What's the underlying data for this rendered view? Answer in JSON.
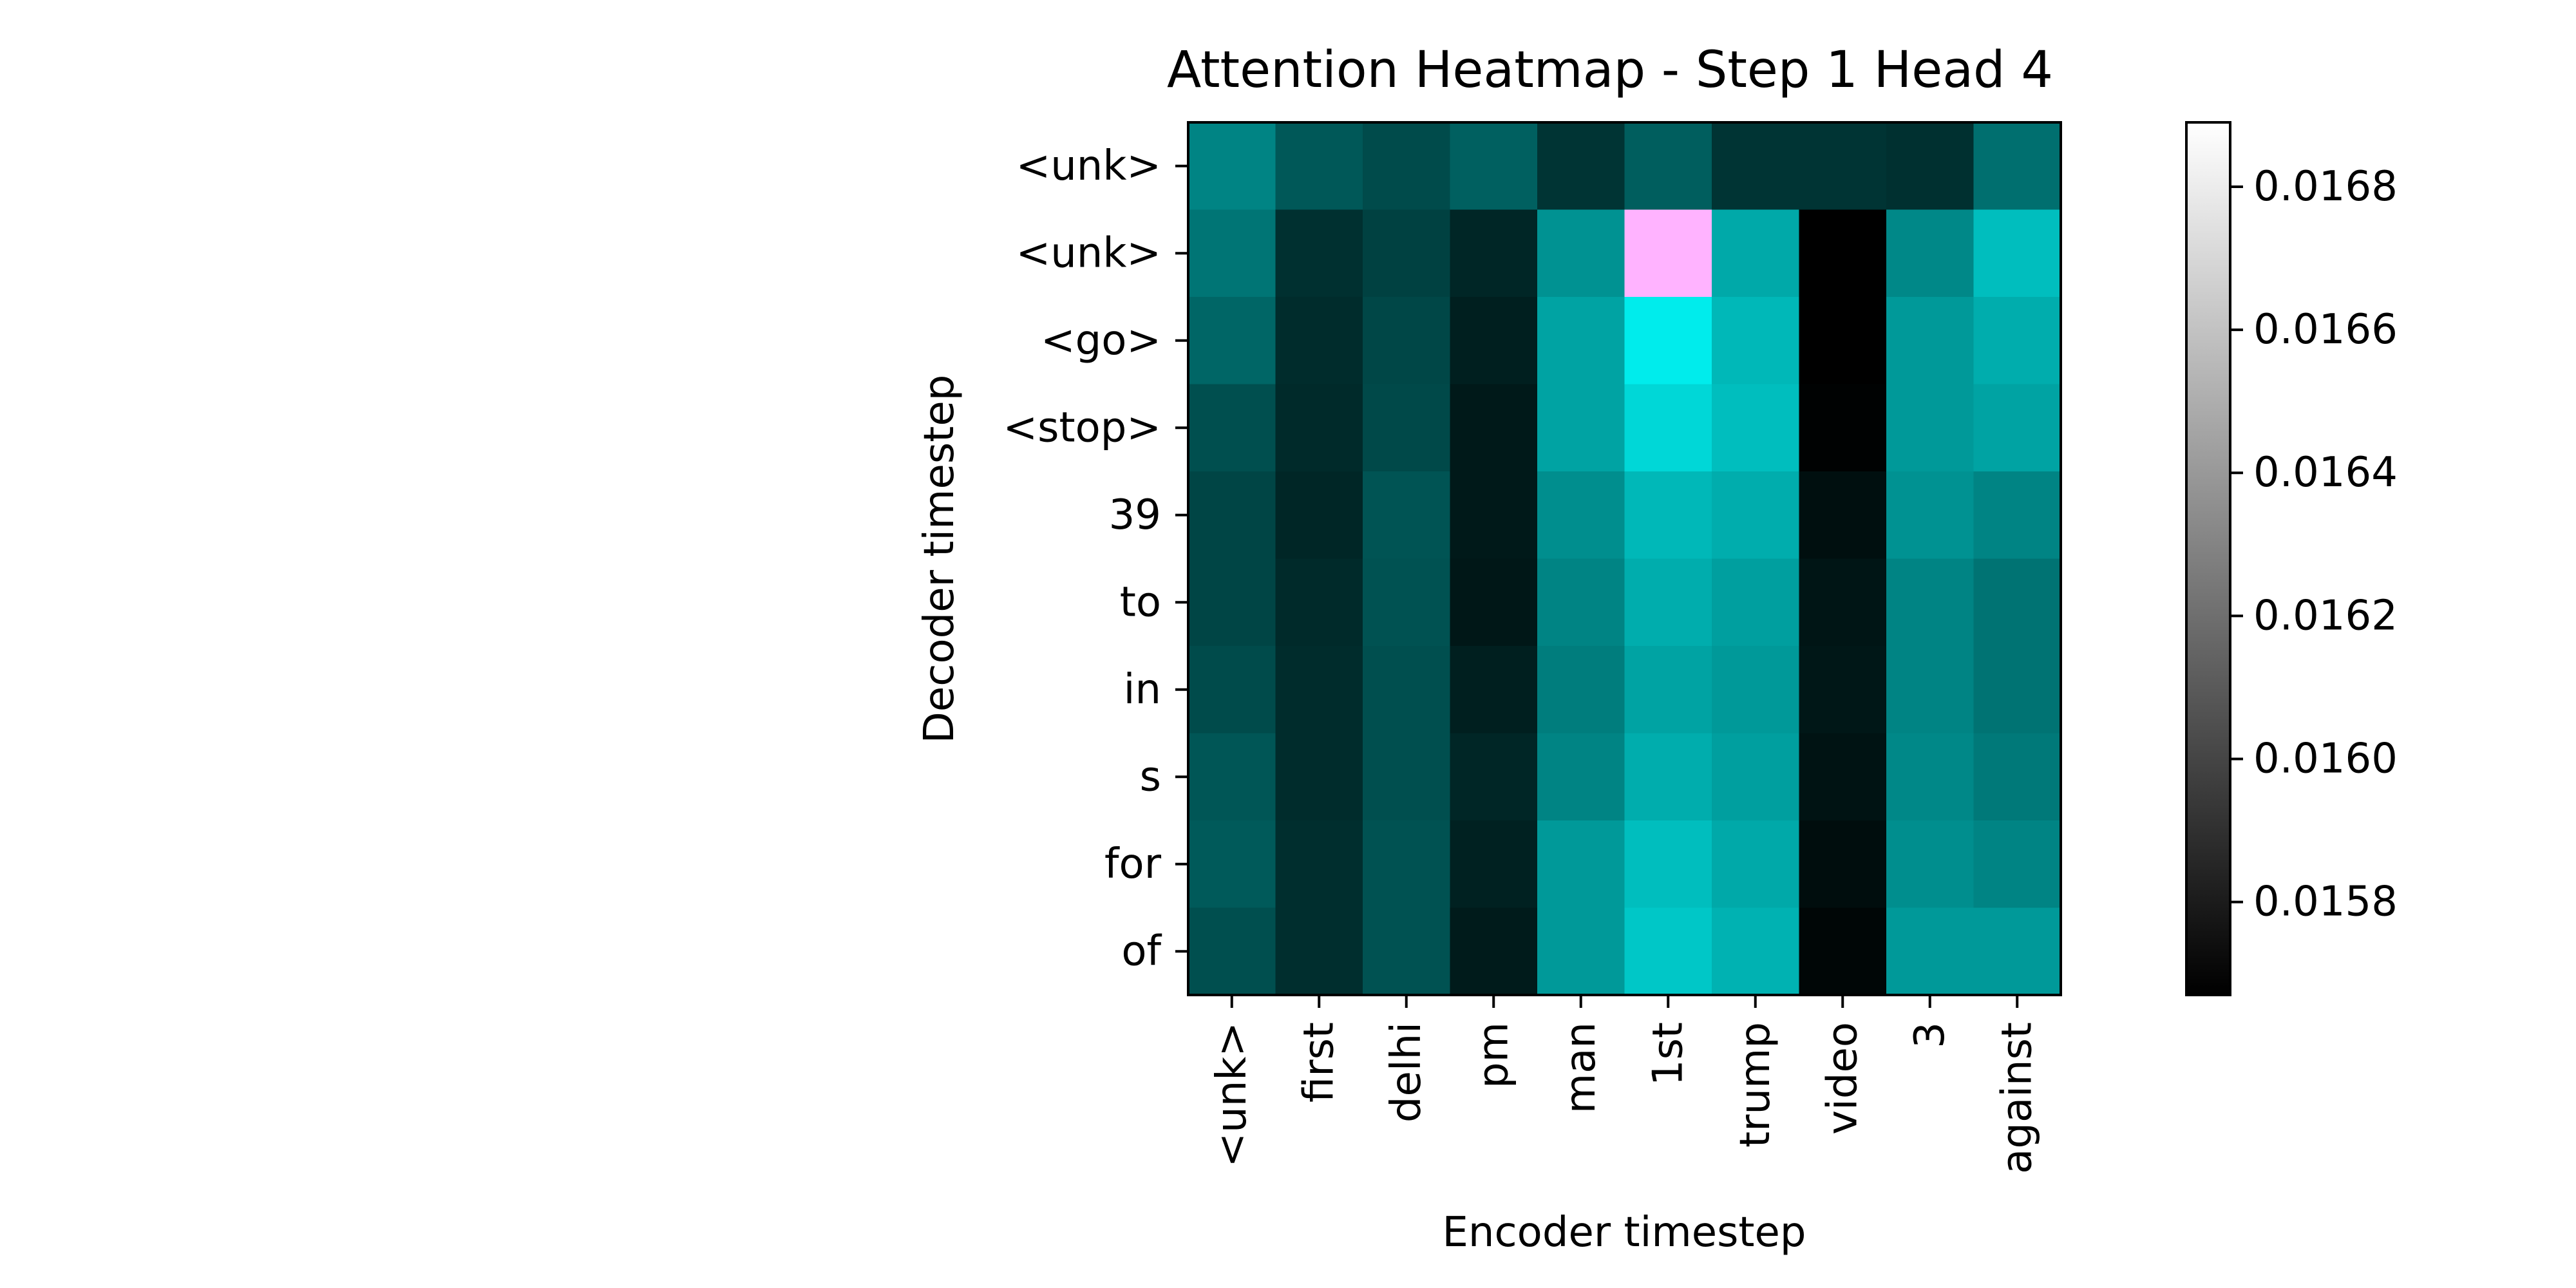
{
  "chart_data": {
    "type": "heatmap",
    "title": "Attention Heatmap - Step 1 Head 4",
    "xlabel": "Encoder timestep",
    "ylabel": "Decoder timestep",
    "x_categories": [
      "<unk>",
      "first",
      "delhi",
      "pm",
      "man",
      "1st",
      "trump",
      "video",
      "3",
      "against"
    ],
    "y_categories": [
      "<unk>",
      "<unk>",
      "<go>",
      "<stop>",
      "39",
      "to",
      "in",
      "s",
      "for",
      "of"
    ],
    "values": [
      [
        0.0163,
        0.01609,
        0.01603,
        0.01613,
        0.01592,
        0.01612,
        0.01592,
        0.01592,
        0.0159,
        0.0162
      ],
      [
        0.01623,
        0.0159,
        0.01598,
        0.01585,
        0.01637,
        0.017,
        0.01648,
        0.01567,
        0.01632,
        0.01658
      ],
      [
        0.01616,
        0.01588,
        0.01601,
        0.01582,
        0.01645,
        0.0168,
        0.01655,
        0.01567,
        0.0164,
        0.0165
      ],
      [
        0.01605,
        0.01587,
        0.01602,
        0.01579,
        0.01645,
        0.0167,
        0.01658,
        0.01568,
        0.0164,
        0.01645
      ],
      [
        0.016,
        0.01585,
        0.01607,
        0.01579,
        0.01635,
        0.01655,
        0.0165,
        0.01574,
        0.01637,
        0.0163
      ],
      [
        0.016,
        0.01587,
        0.01606,
        0.01578,
        0.0163,
        0.0165,
        0.01643,
        0.01577,
        0.0163,
        0.01622
      ],
      [
        0.01603,
        0.01588,
        0.01605,
        0.01582,
        0.01627,
        0.01645,
        0.0164,
        0.01578,
        0.0163,
        0.01622
      ],
      [
        0.01608,
        0.01588,
        0.01605,
        0.01585,
        0.0163,
        0.0165,
        0.01643,
        0.01576,
        0.01632,
        0.01625
      ],
      [
        0.0161,
        0.01589,
        0.01606,
        0.01583,
        0.0164,
        0.01658,
        0.01648,
        0.01573,
        0.01635,
        0.0163
      ],
      [
        0.01605,
        0.01589,
        0.01606,
        0.0158,
        0.0164,
        0.01662,
        0.01652,
        0.0157,
        0.0164,
        0.0164
      ]
    ],
    "colormap": {
      "stops": [
        "#000000",
        "#ffffff"
      ],
      "display_tint": [
        "#00ffff",
        "#ff00ff"
      ],
      "over_range_color": "#ffb3ff"
    },
    "colorbar": {
      "vmin": 0.01567,
      "vmax": 0.01689,
      "ticks": [
        0.0158,
        0.016,
        0.0162,
        0.0164,
        0.0166,
        0.0168
      ],
      "tick_labels": [
        "0.0158",
        "0.0160",
        "0.0162",
        "0.0164",
        "0.0166",
        "0.0168"
      ]
    },
    "grid": false,
    "legend": "none"
  }
}
